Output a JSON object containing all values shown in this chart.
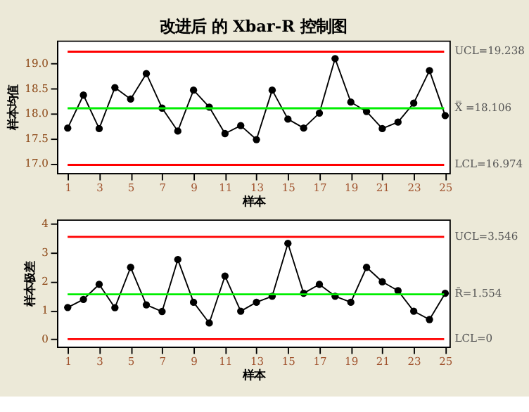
{
  "chart_data": [
    {
      "type": "line",
      "title": "改进后 的 Xbar-R 控制图",
      "xlabel": "样本",
      "ylabel": "样本均值",
      "x": [
        1,
        2,
        3,
        4,
        5,
        6,
        7,
        8,
        9,
        10,
        11,
        12,
        13,
        14,
        15,
        16,
        17,
        18,
        19,
        20,
        21,
        22,
        23,
        24,
        25
      ],
      "series": [
        {
          "color": "#000000",
          "values": [
            17.71,
            18.37,
            17.7,
            18.52,
            18.29,
            18.8,
            18.11,
            17.65,
            18.47,
            18.13,
            17.6,
            17.76,
            17.48,
            18.47,
            17.89,
            17.71,
            18.01,
            19.1,
            18.23,
            18.04,
            17.7,
            17.83,
            18.21,
            18.86,
            17.96
          ]
        }
      ],
      "marker": "circle",
      "line_style": "solid",
      "grid": false,
      "xlim": [
        0.32,
        25.27
      ],
      "xticks": [
        1,
        3,
        5,
        7,
        9,
        11,
        13,
        15,
        17,
        19,
        21,
        23,
        25
      ],
      "ylim": [
        16.81,
        19.46
      ],
      "yticks": [
        {
          "value": 17,
          "label": "17.0"
        },
        {
          "value": 17.5,
          "label": "17.5"
        },
        {
          "value": 18,
          "label": "18.0"
        },
        {
          "value": 18.5,
          "label": "18.5"
        },
        {
          "value": 19,
          "label": "19.0"
        }
      ],
      "ref_lines": [
        {
          "axis": "y",
          "value": 19.238,
          "label": "UCL=19.238",
          "color": "#ff0000"
        },
        {
          "axis": "y",
          "value": 18.106,
          "label": "X̿ =18.106",
          "color": "#00ee00"
        },
        {
          "axis": "y",
          "value": 16.974,
          "label": "LCL=16.974",
          "color": "#ff0000"
        }
      ]
    },
    {
      "type": "line",
      "xlabel": "样本",
      "ylabel": "样本极差",
      "x": [
        1,
        2,
        3,
        4,
        5,
        6,
        7,
        8,
        9,
        10,
        11,
        12,
        13,
        14,
        15,
        16,
        17,
        18,
        19,
        20,
        21,
        22,
        23,
        24,
        25
      ],
      "series": [
        {
          "color": "#000000",
          "values": [
            1.1,
            1.38,
            1.9,
            1.09,
            2.49,
            1.19,
            0.96,
            2.76,
            1.28,
            0.56,
            2.19,
            0.97,
            1.28,
            1.49,
            3.32,
            1.59,
            1.9,
            1.49,
            1.28,
            2.49,
            1.99,
            1.68,
            0.97,
            0.68,
            1.59
          ]
        }
      ],
      "marker": "circle",
      "line_style": "solid",
      "grid": false,
      "xlim": [
        0.32,
        25.27
      ],
      "xticks": [
        1,
        3,
        5,
        7,
        9,
        11,
        13,
        15,
        17,
        19,
        21,
        23,
        25
      ],
      "ylim": [
        -0.26,
        4.15
      ],
      "yticks": [
        0,
        1,
        2,
        3,
        4
      ],
      "ref_lines": [
        {
          "axis": "y",
          "value": 3.546,
          "label": "UCL=3.546",
          "color": "#ff0000"
        },
        {
          "axis": "y",
          "value": 1.554,
          "label": "R̄=1.554",
          "color": "#00ee00"
        },
        {
          "axis": "y",
          "value": 0,
          "label": "LCL=0",
          "color": "#ff0000"
        }
      ]
    }
  ]
}
